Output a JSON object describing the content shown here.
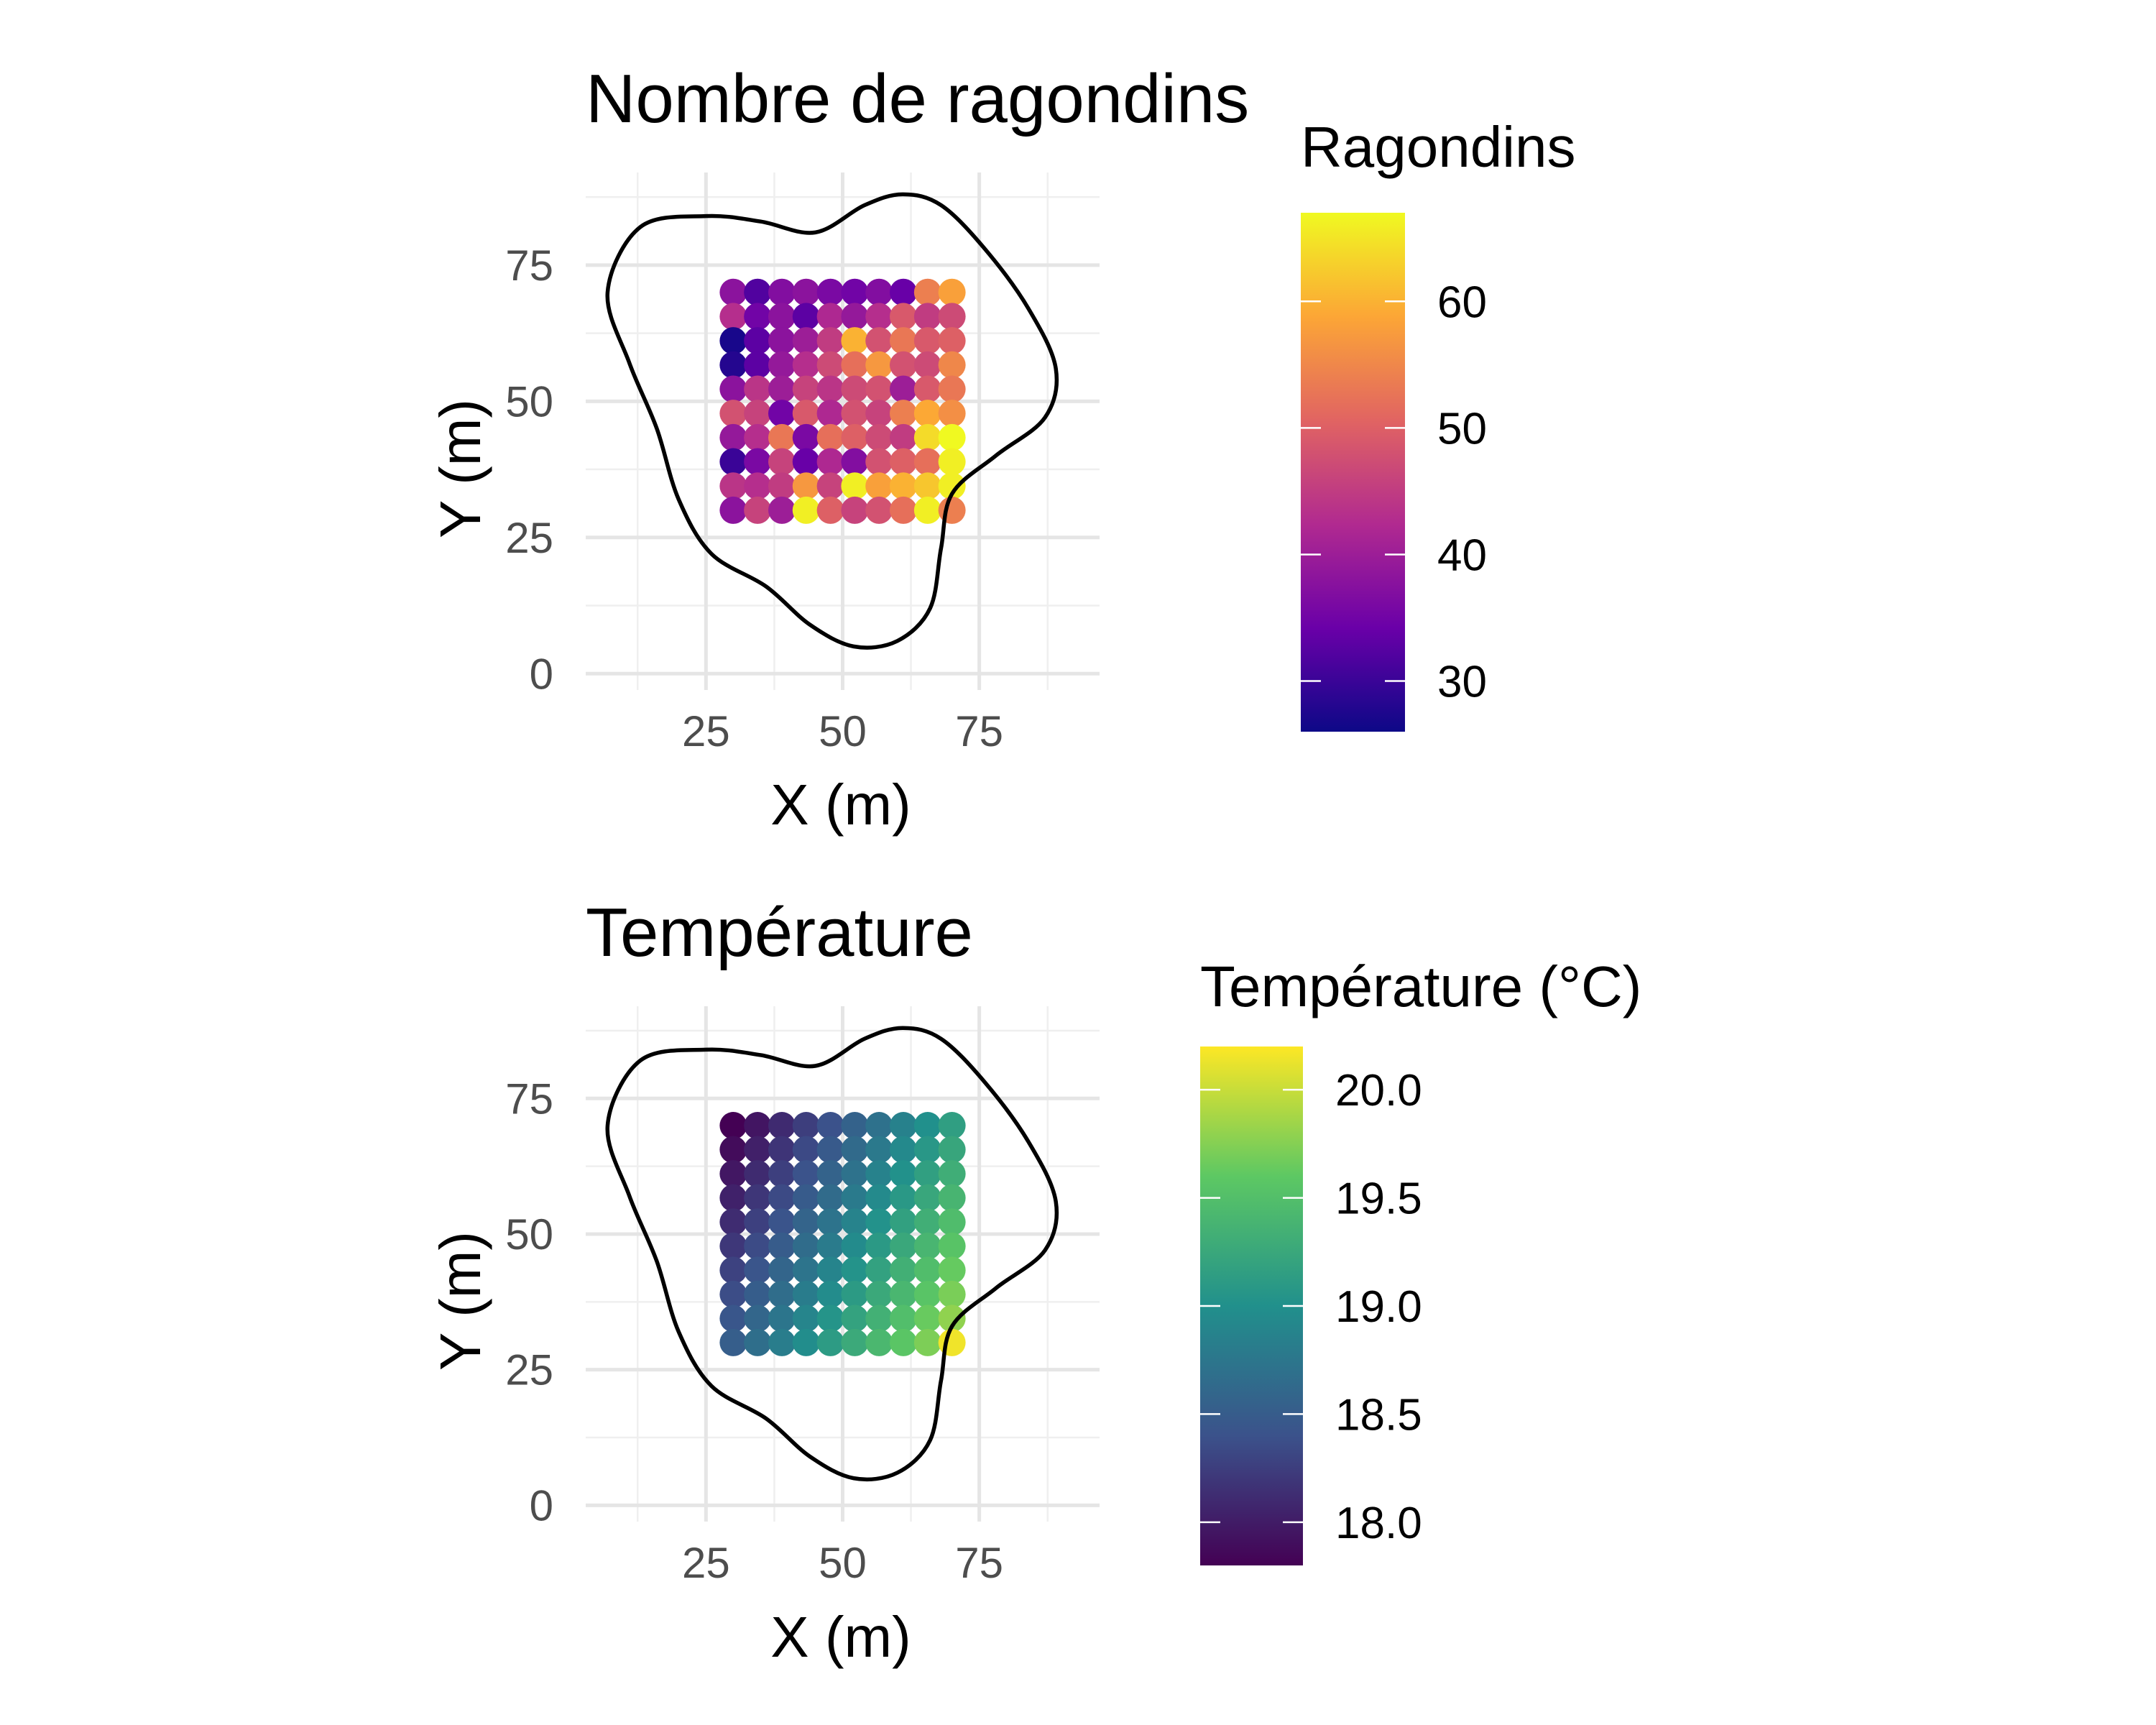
{
  "chart_data": [
    {
      "type": "scatter",
      "title": "Nombre de ragondins",
      "xlabel": "X (m)",
      "ylabel": "Y (m)",
      "xlim": [
        3,
        97
      ],
      "ylim": [
        -3,
        92
      ],
      "x_ticks": [
        25,
        50,
        75
      ],
      "y_ticks": [
        0,
        25,
        50,
        75
      ],
      "grid": true,
      "legend": {
        "title": "Ragondins",
        "placement": "right",
        "palette": "plasma",
        "range": [
          26,
          67
        ],
        "ticks": [
          30,
          40,
          50,
          60
        ]
      },
      "colors": [
        "#0d0887",
        "#6a00a8",
        "#b12a90",
        "#e16462",
        "#fca636",
        "#f0f921"
      ],
      "x": [
        30,
        34.44,
        38.89,
        43.33,
        47.78,
        52.22,
        56.67,
        61.11,
        65.56,
        70
      ],
      "y": [
        70,
        65.56,
        61.11,
        56.67,
        52.22,
        47.78,
        43.33,
        38.89,
        34.44,
        30
      ],
      "values": [
        [
          38,
          32,
          37,
          38,
          36,
          35,
          37,
          34,
          54,
          58
        ],
        [
          43,
          35,
          38,
          33,
          42,
          39,
          43,
          49,
          45,
          47
        ],
        [
          27,
          33,
          38,
          40,
          45,
          60,
          48,
          53,
          49,
          50
        ],
        [
          28,
          33,
          39,
          43,
          47,
          52,
          57,
          48,
          47,
          55
        ],
        [
          38,
          44,
          40,
          46,
          44,
          47,
          48,
          40,
          49,
          53
        ],
        [
          48,
          46,
          35,
          49,
          42,
          48,
          46,
          54,
          59,
          56
        ],
        [
          39,
          43,
          53,
          36,
          52,
          50,
          47,
          45,
          64,
          67
        ],
        [
          30,
          36,
          46,
          34,
          42,
          37,
          48,
          50,
          52,
          66
        ],
        [
          44,
          43,
          45,
          57,
          46,
          66,
          58,
          60,
          62,
          66
        ],
        [
          38,
          46,
          40,
          66,
          50,
          46,
          48,
          52,
          66,
          54
        ]
      ],
      "boundary": [
        [
          61,
          88
        ],
        [
          68,
          86
        ],
        [
          76,
          78
        ],
        [
          84,
          67
        ],
        [
          89,
          56
        ],
        [
          87,
          47
        ],
        [
          78,
          40
        ],
        [
          70,
          33
        ],
        [
          68,
          23
        ],
        [
          66,
          12
        ],
        [
          60,
          6
        ],
        [
          52,
          5
        ],
        [
          44,
          9
        ],
        [
          36,
          16
        ],
        [
          26,
          22
        ],
        [
          20,
          32
        ],
        [
          16,
          45
        ],
        [
          11,
          57
        ],
        [
          7,
          70
        ],
        [
          13,
          82
        ],
        [
          25,
          84
        ],
        [
          35,
          83
        ],
        [
          45,
          81
        ],
        [
          54,
          86
        ],
        [
          61,
          88
        ]
      ]
    },
    {
      "type": "scatter",
      "title": "Température",
      "xlabel": "X (m)",
      "ylabel": "Y (m)",
      "xlim": [
        3,
        97
      ],
      "ylim": [
        -3,
        92
      ],
      "x_ticks": [
        25,
        50,
        75
      ],
      "y_ticks": [
        0,
        25,
        50,
        75
      ],
      "grid": true,
      "legend": {
        "title": "Température (°C)",
        "placement": "right",
        "palette": "viridis",
        "range": [
          17.8,
          20.2
        ],
        "ticks": [
          "18.0",
          "18.5",
          "19.0",
          "19.5",
          "20.0"
        ]
      },
      "colors": [
        "#440154",
        "#3b528b",
        "#21908c",
        "#5dc863",
        "#fde725"
      ],
      "x": [
        30,
        34.44,
        38.89,
        43.33,
        47.78,
        52.22,
        56.67,
        61.11,
        65.56,
        70
      ],
      "y": [
        70,
        65.56,
        61.11,
        56.67,
        52.22,
        47.78,
        43.33,
        38.89,
        34.44,
        30
      ],
      "values": [
        [
          17.8,
          17.95,
          18.1,
          18.25,
          18.4,
          18.55,
          18.7,
          18.85,
          19.0,
          19.15
        ],
        [
          17.88,
          18.03,
          18.18,
          18.33,
          18.48,
          18.63,
          18.78,
          18.93,
          19.08,
          19.23
        ],
        [
          17.96,
          18.11,
          18.26,
          18.41,
          18.56,
          18.71,
          18.86,
          19.01,
          19.16,
          19.31
        ],
        [
          18.04,
          18.19,
          18.34,
          18.49,
          18.64,
          18.79,
          18.94,
          19.09,
          19.24,
          19.39
        ],
        [
          18.12,
          18.27,
          18.42,
          18.57,
          18.72,
          18.87,
          19.02,
          19.17,
          19.32,
          19.47
        ],
        [
          18.2,
          18.35,
          18.5,
          18.65,
          18.8,
          18.95,
          19.1,
          19.25,
          19.4,
          19.55
        ],
        [
          18.28,
          18.43,
          18.58,
          18.73,
          18.88,
          19.03,
          19.18,
          19.33,
          19.48,
          19.63
        ],
        [
          18.36,
          18.51,
          18.66,
          18.81,
          18.96,
          19.11,
          19.26,
          19.41,
          19.56,
          19.71
        ],
        [
          18.44,
          18.59,
          18.74,
          18.89,
          19.04,
          19.19,
          19.34,
          19.49,
          19.64,
          19.79
        ],
        [
          18.52,
          18.67,
          18.82,
          18.97,
          19.12,
          19.27,
          19.42,
          19.57,
          19.72,
          20.15
        ]
      ],
      "boundary": [
        [
          61,
          88
        ],
        [
          68,
          86
        ],
        [
          76,
          78
        ],
        [
          84,
          67
        ],
        [
          89,
          56
        ],
        [
          87,
          47
        ],
        [
          78,
          40
        ],
        [
          70,
          33
        ],
        [
          68,
          23
        ],
        [
          66,
          12
        ],
        [
          60,
          6
        ],
        [
          52,
          5
        ],
        [
          44,
          9
        ],
        [
          36,
          16
        ],
        [
          26,
          22
        ],
        [
          20,
          32
        ],
        [
          16,
          45
        ],
        [
          11,
          57
        ],
        [
          7,
          70
        ],
        [
          13,
          82
        ],
        [
          25,
          84
        ],
        [
          35,
          83
        ],
        [
          45,
          81
        ],
        [
          54,
          86
        ],
        [
          61,
          88
        ]
      ]
    }
  ]
}
